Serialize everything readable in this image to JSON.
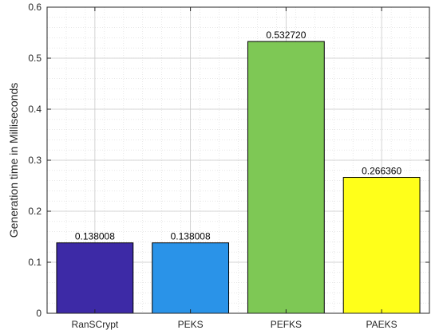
{
  "chart_data": {
    "type": "bar",
    "categories": [
      "RanSCrypt",
      "PEKS",
      "PEFKS",
      "PAEKS"
    ],
    "values": [
      0.138008,
      0.138008,
      0.53272,
      0.26636
    ],
    "data_labels": [
      "0.138008",
      "0.138008",
      "0.532720",
      "0.266360"
    ],
    "bar_colors": [
      "#3d2aa6",
      "#2a93e8",
      "#7ec855",
      "#ffff1a"
    ],
    "ylabel": "Generation time in Milliseconds",
    "ylim": [
      0,
      0.6
    ],
    "yticks": [
      "0",
      "0.1",
      "0.2",
      "0.3",
      "0.4",
      "0.5",
      "0.6"
    ],
    "ytick_values": [
      0,
      0.1,
      0.2,
      0.3,
      0.4,
      0.5,
      0.6
    ],
    "grid": true,
    "minor_grid": true
  }
}
